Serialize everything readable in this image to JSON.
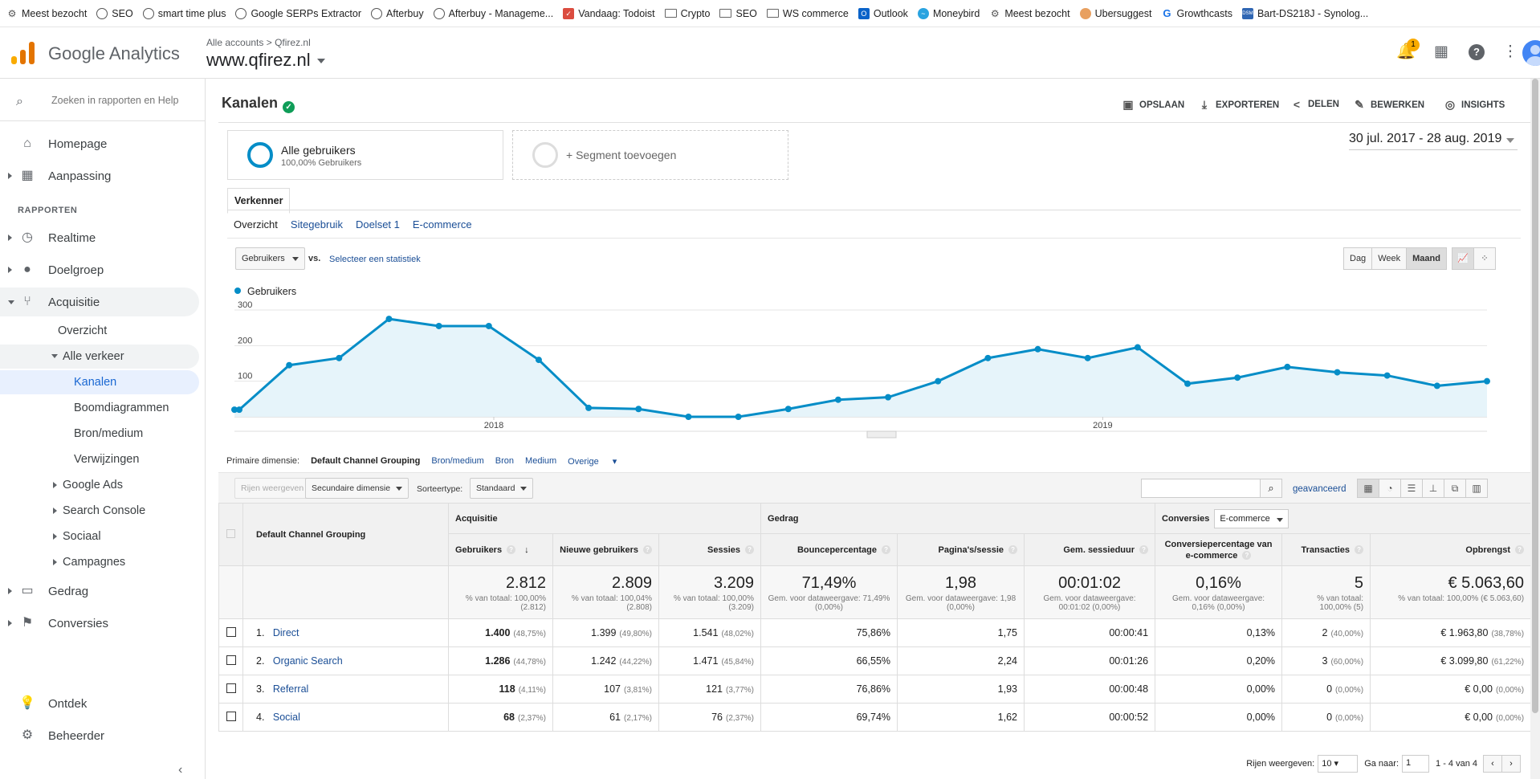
{
  "bookmarks": [
    {
      "label": "Meest bezocht",
      "icon": "gear-icon"
    },
    {
      "label": "SEO",
      "icon": "globe-icon"
    },
    {
      "label": "smart time plus",
      "icon": "globe-icon"
    },
    {
      "label": "Google SERPs Extractor",
      "icon": "globe-icon"
    },
    {
      "label": "Afterbuy",
      "icon": "globe-icon"
    },
    {
      "label": "Afterbuy - Manageme...",
      "icon": "globe-icon"
    },
    {
      "label": "Vandaag: Todoist",
      "icon": "todoist-icon"
    },
    {
      "label": "Crypto",
      "icon": "folder-icon"
    },
    {
      "label": "SEO",
      "icon": "folder-icon"
    },
    {
      "label": "WS commerce",
      "icon": "folder-icon"
    },
    {
      "label": "Outlook",
      "icon": "outlook-icon"
    },
    {
      "label": "Moneybird",
      "icon": "moneybird-icon"
    },
    {
      "label": "Meest bezocht",
      "icon": "gear-icon"
    },
    {
      "label": "Ubersuggest",
      "icon": "ubersuggest-icon"
    },
    {
      "label": "Growthcasts",
      "icon": "growthcasts-icon"
    },
    {
      "label": "Bart-DS218J - Synolog...",
      "icon": "synology-icon"
    }
  ],
  "header": {
    "product": "Google Analytics",
    "crumb_account": "Alle accounts",
    "crumb_sep": ">",
    "crumb_property": "Qfirez.nl",
    "view": "www.qfirez.nl",
    "notif_count": "1"
  },
  "sidebar": {
    "search_placeholder": "Zoeken in rapporten en Help",
    "home": "Homepage",
    "custom": "Aanpassing",
    "section": "RAPPORTEN",
    "realtime": "Realtime",
    "audience": "Doelgroep",
    "acquisition": "Acquisitie",
    "overview": "Overzicht",
    "all_traffic": "Alle verkeer",
    "channels": "Kanalen",
    "treemaps": "Boomdiagrammen",
    "source_medium": "Bron/medium",
    "referrals": "Verwijzingen",
    "google_ads": "Google Ads",
    "search_console": "Search Console",
    "social": "Sociaal",
    "campaigns": "Campagnes",
    "behavior": "Gedrag",
    "conversions": "Conversies",
    "discover": "Ontdek",
    "admin": "Beheerder"
  },
  "toolbar": {
    "title": "Kanalen",
    "save": "OPSLAAN",
    "export": "EXPORTEREN",
    "share": "DELEN",
    "edit": "BEWERKEN",
    "insights": "INSIGHTS"
  },
  "segment": {
    "title": "Alle gebruikers",
    "sub": "100,00% Gebruikers",
    "add": "+ Segment toevoegen"
  },
  "date_range": "30 jul. 2017 - 28 aug. 2019",
  "explorer": {
    "tab": "Verkenner",
    "subtabs": [
      "Overzicht",
      "Sitegebruik",
      "Doelset 1",
      "E-commerce"
    ]
  },
  "metric_select": {
    "metric": "Gebruikers",
    "vs": "vs.",
    "select": "Selecteer een statistiek",
    "day": "Dag",
    "week": "Week",
    "month": "Maand"
  },
  "chart_data": {
    "type": "area",
    "series": [
      {
        "name": "Gebruikers",
        "values": [
          20,
          145,
          165,
          275,
          255,
          255,
          160,
          25,
          22,
          0,
          0,
          22,
          48,
          55,
          100,
          165,
          190,
          165,
          195,
          93,
          110,
          140,
          125,
          116,
          87,
          100
        ]
      }
    ],
    "y_ticks": [
      "100",
      "200",
      "300"
    ],
    "x_ticks": [
      "2018",
      "2019"
    ],
    "ylim": [
      0,
      300
    ]
  },
  "primary_dim": {
    "label": "Primaire dimensie:",
    "current": "Default Channel Grouping",
    "opts": [
      "Bron/medium",
      "Bron",
      "Medium"
    ],
    "other": "Overige"
  },
  "controls": {
    "rows": "Rijen weergeven",
    "secondary": "Secundaire dimensie",
    "sort_label": "Sorteertype:",
    "sort": "Standaard",
    "advanced": "geavanceerd"
  },
  "table": {
    "dim_header": "Default Channel Grouping",
    "groups": {
      "acq": "Acquisitie",
      "beh": "Gedrag",
      "conv": "Conversies",
      "conv_select": "E-commerce"
    },
    "cols": [
      "Gebruikers",
      "Nieuwe gebruikers",
      "Sessies",
      "Bouncepercentage",
      "Pagina's/sessie",
      "Gem. sessieduur",
      "Conversiepercentage van e-commerce",
      "Transacties",
      "Opbrengst"
    ],
    "totals": [
      {
        "v": "2.812",
        "s": "% van totaal: 100,00% (2.812)"
      },
      {
        "v": "2.809",
        "s": "% van totaal: 100,04% (2.808)"
      },
      {
        "v": "3.209",
        "s": "% van totaal: 100,00% (3.209)"
      },
      {
        "v": "71,49%",
        "s": "Gem. voor dataweergave: 71,49% (0,00%)"
      },
      {
        "v": "1,98",
        "s": "Gem. voor dataweergave: 1,98 (0,00%)"
      },
      {
        "v": "00:01:02",
        "s": "Gem. voor dataweergave: 00:01:02 (0,00%)"
      },
      {
        "v": "0,16%",
        "s": "Gem. voor dataweergave: 0,16% (0,00%)"
      },
      {
        "v": "5",
        "s": "% van totaal: 100,00% (5)"
      },
      {
        "v": "€ 5.063,60",
        "s": "% van totaal: 100,00% (€ 5.063,60)"
      }
    ],
    "rows": [
      {
        "n": "1.",
        "ch": "Direct",
        "u": "1.400",
        "up": "(48,75%)",
        "nu": "1.399",
        "nup": "(49,80%)",
        "s": "1.541",
        "sp": "(48,02%)",
        "b": "75,86%",
        "p": "1,75",
        "d": "00:00:41",
        "c": "0,13%",
        "t": "2",
        "tp": "(40,00%)",
        "r": "€ 1.963,80",
        "rp": "(38,78%)"
      },
      {
        "n": "2.",
        "ch": "Organic Search",
        "u": "1.286",
        "up": "(44,78%)",
        "nu": "1.242",
        "nup": "(44,22%)",
        "s": "1.471",
        "sp": "(45,84%)",
        "b": "66,55%",
        "p": "2,24",
        "d": "00:01:26",
        "c": "0,20%",
        "t": "3",
        "tp": "(60,00%)",
        "r": "€ 3.099,80",
        "rp": "(61,22%)"
      },
      {
        "n": "3.",
        "ch": "Referral",
        "u": "118",
        "up": "(4,11%)",
        "nu": "107",
        "nup": "(3,81%)",
        "s": "121",
        "sp": "(3,77%)",
        "b": "76,86%",
        "p": "1,93",
        "d": "00:00:48",
        "c": "0,00%",
        "t": "0",
        "tp": "(0,00%)",
        "r": "€ 0,00",
        "rp": "(0,00%)"
      },
      {
        "n": "4.",
        "ch": "Social",
        "u": "68",
        "up": "(2,37%)",
        "nu": "61",
        "nup": "(2,17%)",
        "s": "76",
        "sp": "(2,37%)",
        "b": "69,74%",
        "p": "1,62",
        "d": "00:00:52",
        "c": "0,00%",
        "t": "0",
        "tp": "(0,00%)",
        "r": "€ 0,00",
        "rp": "(0,00%)"
      }
    ]
  },
  "pager": {
    "rows_label": "Rijen weergeven:",
    "rows": "10",
    "goto": "Ga naar:",
    "page": "1",
    "range": "1 - 4 van 4"
  }
}
